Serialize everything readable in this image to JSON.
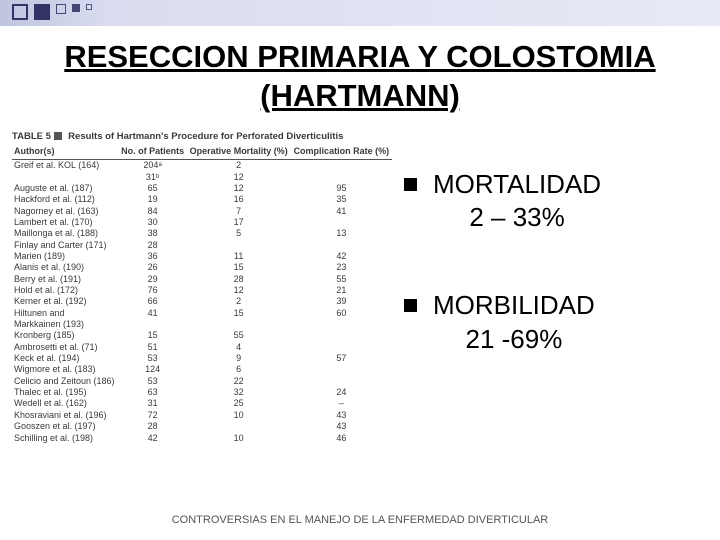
{
  "title": "RESECCION PRIMARIA Y COLOSTOMIA (HARTMANN)",
  "table": {
    "caption_prefix": "TABLE 5",
    "caption": "Results of Hartmann's Procedure for Perforated Diverticulitis",
    "columns": [
      "Author(s)",
      "No. of Patients",
      "Operative Mortality (%)",
      "Complication Rate (%)"
    ],
    "rows": [
      [
        "Greif et al. KOL (164)",
        "204ᵃ",
        "2",
        ""
      ],
      [
        "",
        "31ᵇ",
        "12",
        ""
      ],
      [
        "Auguste et al. (187)",
        "65",
        "12",
        "95"
      ],
      [
        "Hackford et al. (112)",
        "19",
        "16",
        "35"
      ],
      [
        "Nagorney et al. (163)",
        "84",
        "7",
        "41"
      ],
      [
        "Lambert et al. (170)",
        "30",
        "17",
        ""
      ],
      [
        "Maillonga et al. (188)",
        "38",
        "5",
        "13"
      ],
      [
        "Finlay and Carter (171)",
        "28",
        "",
        ""
      ],
      [
        "Marien (189)",
        "36",
        "11",
        "42"
      ],
      [
        "Alanis et al. (190)",
        "26",
        "15",
        "23"
      ],
      [
        "Berry et al. (191)",
        "29",
        "28",
        "55"
      ],
      [
        "Hold et al. (172)",
        "76",
        "12",
        "21"
      ],
      [
        "Kerner et al. (192)",
        "66",
        "2",
        "39"
      ],
      [
        "Hiltunen and",
        "41",
        "15",
        "60"
      ],
      [
        "   Markkainen (193)",
        "",
        "",
        ""
      ],
      [
        "Kronberg (185)",
        "15",
        "55",
        ""
      ],
      [
        "Ambrosetti et al. (71)",
        "51",
        "4",
        ""
      ],
      [
        "Keck et al. (194)",
        "53",
        "9",
        "57"
      ],
      [
        "Wigmore et al. (183)",
        "124",
        "6",
        ""
      ],
      [
        "Celicio and Zeitoun (186)",
        "53",
        "22",
        ""
      ],
      [
        "Thalec et al. (195)",
        "63",
        "32",
        "24"
      ],
      [
        "Wedell et al. (162)",
        "31",
        "25",
        "–"
      ],
      [
        "Khosraviani et al. (196)",
        "72",
        "10",
        "43"
      ],
      [
        "Gooszen et al. (197)",
        "28",
        "",
        "43"
      ],
      [
        "Schilling et al. (198)",
        "42",
        "10",
        "46"
      ]
    ]
  },
  "bullets": [
    {
      "line1": "MORTALIDAD",
      "line2": "2 – 33%"
    },
    {
      "line1": "MORBILIDAD",
      "line2": "21 -69%"
    }
  ],
  "footer": "CONTROVERSIAS EN EL MANEJO DE LA ENFERMEDAD DIVERTICULAR",
  "style": {
    "page_bg": "#ffffff",
    "topbar_gradient_from": "#bfc5e0",
    "topbar_gradient_to": "#e8eaf5",
    "square_dark": "#333366",
    "title_fontsize": 31,
    "bullet_fontsize": 26,
    "footer_fontsize": 11,
    "table_fontsize": 9
  }
}
